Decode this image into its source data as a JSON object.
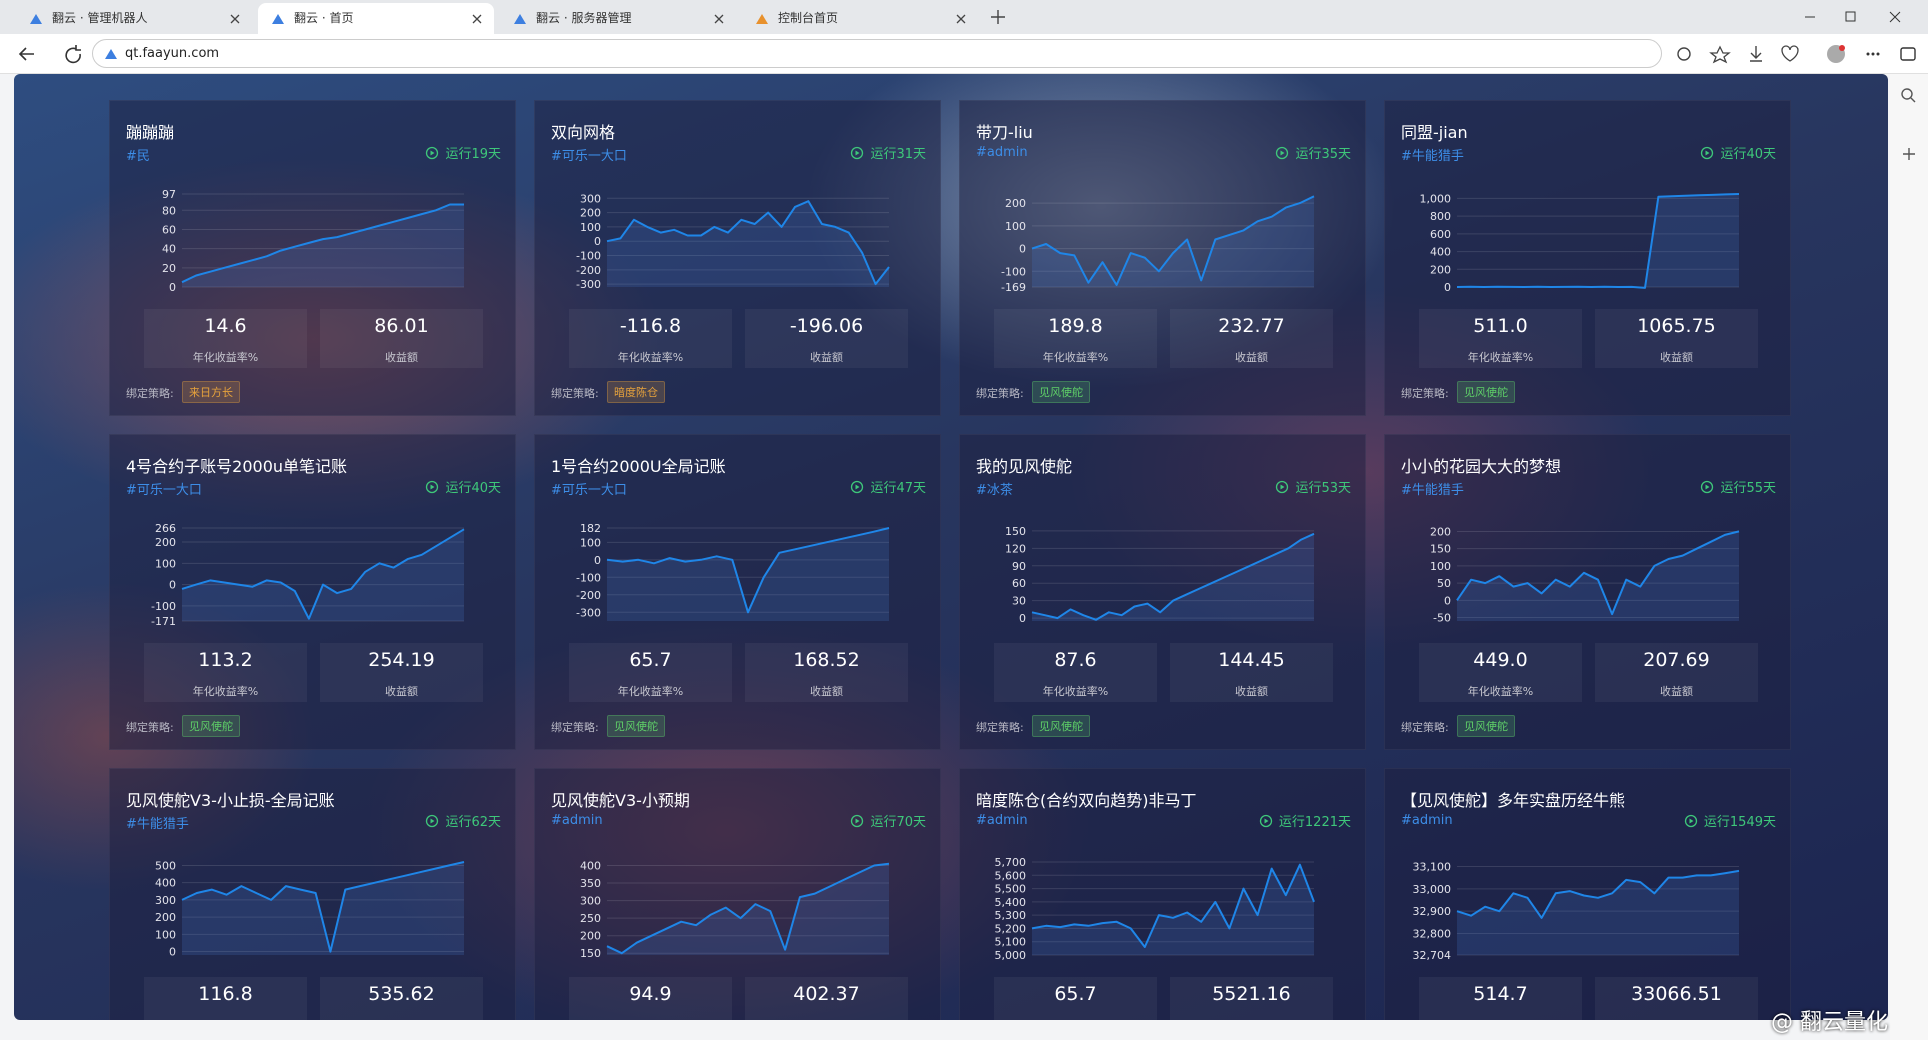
{
  "browser": {
    "tabs": [
      "翻云 · 管理机器人",
      "翻云 · 首页",
      "翻云 · 服务器管理",
      "控制台首页"
    ],
    "active_tab": 1,
    "url": "qt.faayun.com"
  },
  "labels": {
    "rate": "年化收益率%",
    "profit": "收益额",
    "strategy": "绑定策略:"
  },
  "line_color": "#1f86e8",
  "watermark": "@ 翻云量化",
  "cards": [
    {
      "title": "蹦蹦蹦",
      "owner": "#民",
      "running": "运行19天",
      "ylim": [
        0,
        97
      ],
      "yticks": [
        0,
        20,
        40,
        60,
        80,
        97
      ],
      "values": [
        5,
        12,
        16,
        20,
        24,
        28,
        32,
        38,
        42,
        46,
        50,
        52,
        56,
        60,
        64,
        68,
        72,
        76,
        80,
        86,
        86
      ],
      "rate": "14.6",
      "profit": "86.01",
      "strategy": "来日方长",
      "strategy_color": "#e6a23c"
    },
    {
      "title": "双向网格",
      "owner": "#可乐一大口",
      "running": "运行31天",
      "ylim": [
        -320,
        330
      ],
      "yticks": [
        -300,
        -200,
        -100,
        0,
        100,
        200,
        300
      ],
      "values": [
        0,
        20,
        150,
        100,
        60,
        80,
        40,
        40,
        100,
        60,
        150,
        120,
        200,
        100,
        240,
        280,
        120,
        100,
        60,
        -80,
        -300,
        -180
      ],
      "rate": "-116.8",
      "profit": "-196.06",
      "strategy": "暗度陈仓",
      "strategy_color": "#e6a23c"
    },
    {
      "title": "带刀-liu",
      "owner": "#admin",
      "running": "运行35天",
      "ylim": [
        -169,
        240
      ],
      "yticks": [
        -169,
        -100,
        0,
        100,
        200
      ],
      "values": [
        0,
        20,
        -20,
        -30,
        -150,
        -60,
        -160,
        -20,
        -40,
        -100,
        -20,
        40,
        -140,
        40,
        60,
        80,
        120,
        140,
        180,
        200,
        230
      ],
      "rate": "189.8",
      "profit": "232.77",
      "strategy": "见风使舵",
      "strategy_color": "#5fd068"
    },
    {
      "title": "同盟-jian",
      "owner": "#牛能猎手",
      "running": "运行40天",
      "ylim": [
        0,
        1050
      ],
      "yticks": [
        0,
        200,
        400,
        600,
        800,
        {
          "value": 1000,
          "label": "1,000"
        }
      ],
      "values": [
        0,
        2,
        0,
        3,
        1,
        0,
        2,
        0,
        1,
        3,
        0,
        2,
        0,
        1,
        -10,
        1020,
        1025,
        1030,
        1035,
        1040,
        1045,
        1050
      ],
      "rate": "511.0",
      "profit": "1065.75",
      "strategy": "见风使舵",
      "strategy_color": "#5fd068"
    },
    {
      "title": "4号合约子账号2000u单笔记账",
      "owner": "#可乐一大口",
      "running": "运行40天",
      "ylim": [
        -171,
        266
      ],
      "yticks": [
        -171,
        -100,
        0,
        100,
        200,
        266
      ],
      "values": [
        -20,
        0,
        20,
        10,
        0,
        -10,
        20,
        10,
        -30,
        -160,
        0,
        -40,
        -20,
        60,
        100,
        80,
        120,
        140,
        180,
        220,
        260
      ],
      "rate": "113.2",
      "profit": "254.19",
      "strategy": "见风使舵",
      "strategy_color": "#5fd068"
    },
    {
      "title": "1号合约2000U全局记账",
      "owner": "#可乐一大口",
      "running": "运行47天",
      "ylim": [
        -350,
        182
      ],
      "yticks": [
        -300,
        -200,
        -100,
        0,
        100,
        182
      ],
      "values": [
        0,
        -10,
        0,
        -20,
        10,
        -10,
        0,
        20,
        0,
        -300,
        -100,
        40,
        60,
        80,
        100,
        120,
        140,
        160,
        182
      ],
      "rate": "65.7",
      "profit": "168.52",
      "strategy": "见风使舵",
      "strategy_color": "#5fd068"
    },
    {
      "title": "我的见风使舵",
      "owner": "#冰茶",
      "running": "运行53天",
      "ylim": [
        -5,
        155
      ],
      "yticks": [
        0,
        30,
        60,
        90,
        120,
        150
      ],
      "values": [
        10,
        5,
        0,
        15,
        5,
        -3,
        10,
        5,
        20,
        25,
        10,
        30,
        40,
        50,
        60,
        70,
        80,
        90,
        100,
        110,
        120,
        135,
        145
      ],
      "rate": "87.6",
      "profit": "144.45",
      "strategy": "见风使舵",
      "strategy_color": "#5fd068"
    },
    {
      "title": "小小的花园大大的梦想",
      "owner": "#牛能猎手",
      "running": "运行55天",
      "ylim": [
        -60,
        210
      ],
      "yticks": [
        -50,
        0,
        50,
        100,
        150,
        200
      ],
      "values": [
        0,
        60,
        50,
        70,
        40,
        50,
        20,
        60,
        40,
        80,
        60,
        -40,
        60,
        40,
        100,
        120,
        130,
        150,
        170,
        190,
        200
      ],
      "rate": "449.0",
      "profit": "207.69",
      "strategy": "见风使舵",
      "strategy_color": "#5fd068"
    },
    {
      "title": "见风使舵V3-小止损-全局记账",
      "owner": "#牛能猎手",
      "running": "运行62天",
      "ylim": [
        -20,
        520
      ],
      "yticks": [
        0,
        100,
        200,
        300,
        400,
        500
      ],
      "values": [
        300,
        340,
        360,
        330,
        380,
        340,
        300,
        380,
        360,
        340,
        0,
        360,
        380,
        400,
        420,
        440,
        460,
        480,
        500,
        520
      ],
      "rate": "116.8",
      "profit": "535.62"
    },
    {
      "title": "见风使舵V3-小预期",
      "owner": "#admin",
      "running": "运行70天",
      "ylim": [
        145,
        410
      ],
      "yticks": [
        150,
        200,
        250,
        300,
        350,
        400
      ],
      "values": [
        170,
        150,
        180,
        200,
        220,
        240,
        230,
        260,
        280,
        250,
        290,
        270,
        160,
        310,
        320,
        340,
        360,
        380,
        400,
        405
      ],
      "rate": "94.9",
      "profit": "402.37"
    },
    {
      "title": "暗度陈仓(合约双向趋势)非马丁",
      "owner": "#admin",
      "running": "运行1221天",
      "ylim": [
        5000,
        5700
      ],
      "yticks": [
        {
          "value": 5000,
          "label": "5,000"
        },
        {
          "value": 5100,
          "label": "5,100"
        },
        {
          "value": 5200,
          "label": "5,200"
        },
        {
          "value": 5300,
          "label": "5,300"
        },
        {
          "value": 5400,
          "label": "5,400"
        },
        {
          "value": 5500,
          "label": "5,500"
        },
        {
          "value": 5600,
          "label": "5,600"
        },
        {
          "value": 5700,
          "label": "5,700"
        }
      ],
      "values": [
        5200,
        5220,
        5210,
        5230,
        5220,
        5240,
        5250,
        5200,
        5060,
        5300,
        5280,
        5320,
        5250,
        5400,
        5200,
        5500,
        5300,
        5650,
        5450,
        5680,
        5400
      ],
      "rate": "65.7",
      "profit": "5521.16"
    },
    {
      "title": "【见风使舵】多年实盘历经牛熊",
      "owner": "#admin",
      "running": "运行1549天",
      "ylim": [
        32704,
        33120
      ],
      "yticks": [
        {
          "value": 32704,
          "label": "32,704"
        },
        {
          "value": 32800,
          "label": "32,800"
        },
        {
          "value": 32900,
          "label": "32,900"
        },
        {
          "value": 33000,
          "label": "33,000"
        },
        {
          "value": 33100,
          "label": "33,100"
        }
      ],
      "values": [
        32900,
        32880,
        32920,
        32900,
        32980,
        32960,
        32870,
        32980,
        32990,
        32970,
        32960,
        32980,
        33040,
        33030,
        32980,
        33050,
        33050,
        33060,
        33060,
        33070,
        33080
      ],
      "rate": "514.7",
      "profit": "33066.51"
    }
  ]
}
